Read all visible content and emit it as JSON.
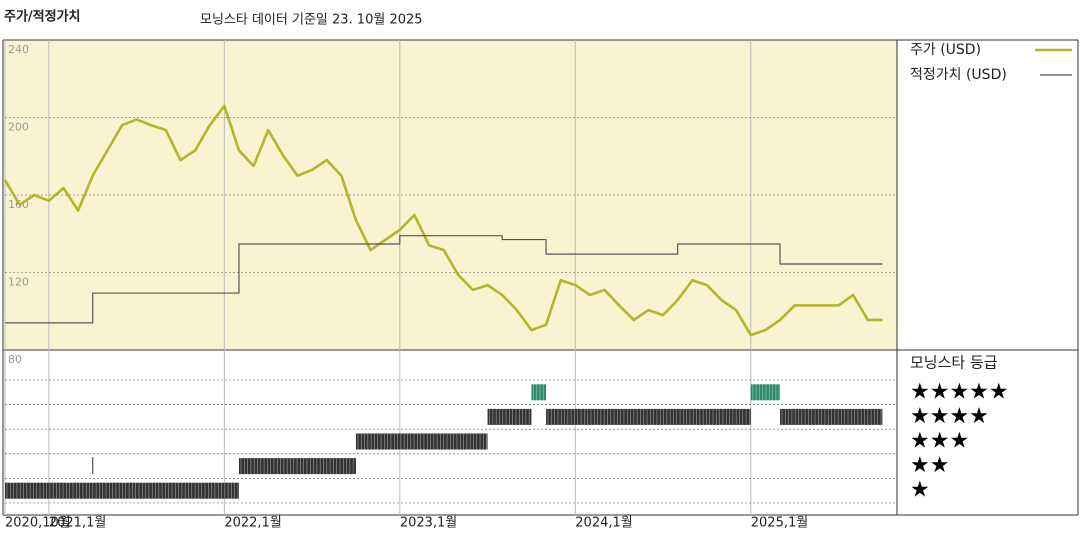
{
  "chart_data": [
    {
      "type": "line",
      "title": "주가/적정가치",
      "subtitle": "모닝스타 데이터 기준일 23. 10월 2025",
      "xlim": [
        "2020-10",
        "2025-11"
      ],
      "xticks": [
        {
          "value": "2020-10",
          "label": "2020,10월"
        },
        {
          "value": "2021-01",
          "label": "2021,1월"
        },
        {
          "value": "2022-01",
          "label": "2022,1월"
        },
        {
          "value": "2023-01",
          "label": "2023,1월"
        },
        {
          "value": "2024-01",
          "label": "2024,1월"
        },
        {
          "value": "2025-01",
          "label": "2025,1월"
        }
      ],
      "ylim": [
        80,
        240
      ],
      "yticks": [
        80,
        120,
        160,
        200,
        240
      ],
      "grid": true,
      "series": [
        {
          "name": "주가 (USD)",
          "color": "#b3b628",
          "step": false,
          "x": [
            "2020-10",
            "2020-11",
            "2020-12",
            "2021-01",
            "2021-02",
            "2021-03",
            "2021-04",
            "2021-05",
            "2021-06",
            "2021-07",
            "2021-08",
            "2021-09",
            "2021-10",
            "2021-11",
            "2021-12",
            "2022-01",
            "2022-02",
            "2022-03",
            "2022-04",
            "2022-05",
            "2022-06",
            "2022-07",
            "2022-08",
            "2022-09",
            "2022-10",
            "2022-11",
            "2022-12",
            "2023-01",
            "2023-02",
            "2023-03",
            "2023-04",
            "2023-05",
            "2023-06",
            "2023-07",
            "2023-08",
            "2023-09",
            "2023-10",
            "2023-11",
            "2023-12",
            "2024-01",
            "2024-02",
            "2024-03",
            "2024-04",
            "2024-05",
            "2024-06",
            "2024-07",
            "2024-08",
            "2024-09",
            "2024-10",
            "2024-11",
            "2024-12",
            "2025-01",
            "2025-02",
            "2025-03",
            "2025-04",
            "2025-05",
            "2025-06",
            "2025-07",
            "2025-08",
            "2025-09",
            "2025-10"
          ],
          "values": [
            167.7,
            155,
            160,
            157,
            163.6,
            152,
            170,
            183,
            196,
            199,
            196,
            193.5,
            178,
            183,
            196,
            206,
            183,
            175,
            193.5,
            180.6,
            170,
            173,
            178,
            170,
            147,
            131.6,
            136.8,
            142,
            149.7,
            134,
            131.6,
            118.7,
            111,
            113.5,
            108.4,
            100.6,
            90.3,
            93,
            116,
            113.5,
            108.4,
            111,
            103,
            95.5,
            100.6,
            98,
            105.8,
            116,
            113.5,
            105.8,
            100.6,
            87.7,
            90.3,
            95.5,
            103,
            103,
            103,
            103,
            108.4,
            95.5,
            95.5
          ]
        },
        {
          "name": "적정가치 (USD)",
          "color": "#555555",
          "step": true,
          "x": [
            "2020-10",
            "2021-04",
            "2022-02",
            "2023-01",
            "2023-08",
            "2023-11",
            "2024-08",
            "2025-03",
            "2025-10"
          ],
          "values": [
            94,
            109.4,
            134.7,
            139,
            137,
            129.5,
            134.7,
            124.4,
            124.4
          ]
        }
      ]
    },
    {
      "type": "rating",
      "legend_title": "모닝스타 등급",
      "rating_labels": [
        "★",
        "★★",
        "★★★",
        "★★★★",
        "★★★★★"
      ],
      "segments": [
        {
          "start": "2020-10",
          "end": "2022-02",
          "stars": 1,
          "color": "#333333"
        },
        {
          "start": "2021-04",
          "end": "2021-04",
          "stars": 2,
          "color": "#333333"
        },
        {
          "start": "2022-02",
          "end": "2022-10",
          "stars": 2,
          "color": "#333333"
        },
        {
          "start": "2022-10",
          "end": "2023-07",
          "stars": 3,
          "color": "#333333"
        },
        {
          "start": "2023-07",
          "end": "2023-10",
          "stars": 4,
          "color": "#333333"
        },
        {
          "start": "2023-10",
          "end": "2023-11",
          "stars": 5,
          "color": "#2e8b6e"
        },
        {
          "start": "2023-11",
          "end": "2025-01",
          "stars": 4,
          "color": "#333333"
        },
        {
          "start": "2025-01",
          "end": "2025-03",
          "stars": 5,
          "color": "#2e8b6e"
        },
        {
          "start": "2025-03",
          "end": "2025-10",
          "stars": 4,
          "color": "#333333"
        }
      ]
    }
  ]
}
